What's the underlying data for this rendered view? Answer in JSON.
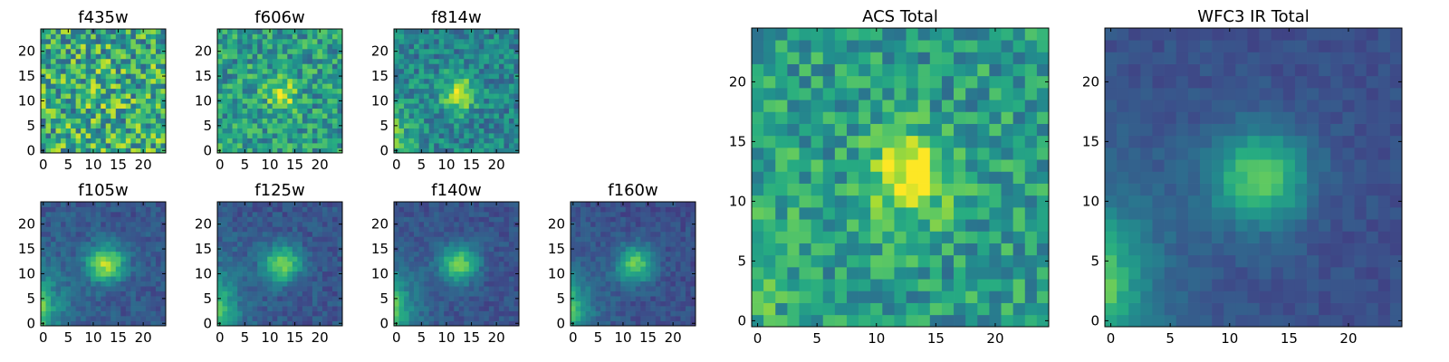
{
  "chart_data": [
    {
      "type": "heatmap",
      "title": "f435w",
      "x_ticks": [
        "0",
        "5",
        "10",
        "15",
        "20"
      ],
      "y_ticks": [
        "0",
        "5",
        "10",
        "15",
        "20"
      ],
      "xlim": [
        0,
        25
      ],
      "ylim": [
        0,
        25
      ],
      "grid_size": 25,
      "colormap": "viridis",
      "source_position": [
        12.5,
        11.5
      ],
      "peak_intensity": 0.05,
      "source_width": 3,
      "corner_glow": 0.0,
      "noise_level": 0.45,
      "background_level": 0.62
    },
    {
      "type": "heatmap",
      "title": "f606w",
      "x_ticks": [
        "0",
        "5",
        "10",
        "15",
        "20"
      ],
      "y_ticks": [
        "0",
        "5",
        "10",
        "15",
        "20"
      ],
      "xlim": [
        0,
        25
      ],
      "ylim": [
        0,
        25
      ],
      "grid_size": 25,
      "colormap": "viridis",
      "source_position": [
        12.5,
        11.5
      ],
      "peak_intensity": 0.35,
      "source_width": 2.2,
      "corner_glow": 0.05,
      "noise_level": 0.32,
      "background_level": 0.55
    },
    {
      "type": "heatmap",
      "title": "f814w",
      "x_ticks": [
        "0",
        "5",
        "10",
        "15",
        "20"
      ],
      "y_ticks": [
        "0",
        "5",
        "10",
        "15",
        "20"
      ],
      "xlim": [
        0,
        25
      ],
      "ylim": [
        0,
        25
      ],
      "grid_size": 25,
      "colormap": "viridis",
      "source_position": [
        12.5,
        11.5
      ],
      "peak_intensity": 0.45,
      "source_width": 2.5,
      "corner_glow": 0.55,
      "noise_level": 0.25,
      "background_level": 0.45
    },
    {
      "type": "heatmap",
      "title": "f105w",
      "x_ticks": [
        "0",
        "5",
        "10",
        "15",
        "20"
      ],
      "y_ticks": [
        "0",
        "5",
        "10",
        "15",
        "20"
      ],
      "xlim": [
        0,
        25
      ],
      "ylim": [
        0,
        25
      ],
      "grid_size": 25,
      "colormap": "viridis",
      "source_position": [
        12.5,
        12
      ],
      "peak_intensity": 0.6,
      "source_width": 2.6,
      "corner_glow": 0.9,
      "noise_level": 0.12,
      "background_level": 0.28
    },
    {
      "type": "heatmap",
      "title": "f125w",
      "x_ticks": [
        "0",
        "5",
        "10",
        "15",
        "20"
      ],
      "y_ticks": [
        "0",
        "5",
        "10",
        "15",
        "20"
      ],
      "xlim": [
        0,
        25
      ],
      "ylim": [
        0,
        25
      ],
      "grid_size": 25,
      "colormap": "viridis",
      "source_position": [
        12.5,
        12
      ],
      "peak_intensity": 0.55,
      "source_width": 2.6,
      "corner_glow": 0.95,
      "noise_level": 0.12,
      "background_level": 0.27
    },
    {
      "type": "heatmap",
      "title": "f140w",
      "x_ticks": [
        "0",
        "5",
        "10",
        "15",
        "20"
      ],
      "y_ticks": [
        "0",
        "5",
        "10",
        "15",
        "20"
      ],
      "xlim": [
        0,
        25
      ],
      "ylim": [
        0,
        25
      ],
      "grid_size": 25,
      "colormap": "viridis",
      "source_position": [
        12.5,
        12
      ],
      "peak_intensity": 0.52,
      "source_width": 2.6,
      "corner_glow": 0.95,
      "noise_level": 0.1,
      "background_level": 0.26
    },
    {
      "type": "heatmap",
      "title": "f160w",
      "x_ticks": [
        "0",
        "5",
        "10",
        "15",
        "20"
      ],
      "y_ticks": [
        "0",
        "5",
        "10",
        "15",
        "20"
      ],
      "xlim": [
        0,
        25
      ],
      "ylim": [
        0,
        25
      ],
      "grid_size": 25,
      "colormap": "viridis",
      "source_position": [
        12.5,
        12
      ],
      "peak_intensity": 0.5,
      "source_width": 2.6,
      "corner_glow": 0.95,
      "noise_level": 0.1,
      "background_level": 0.25
    },
    {
      "type": "heatmap",
      "title": "ACS Total",
      "x_ticks": [
        "0",
        "5",
        "10",
        "15",
        "20"
      ],
      "y_ticks": [
        "0",
        "5",
        "10",
        "15",
        "20"
      ],
      "xlim": [
        0,
        25
      ],
      "ylim": [
        0,
        25
      ],
      "grid_size": 25,
      "colormap": "viridis",
      "source_position": [
        12.5,
        12
      ],
      "peak_intensity": 0.45,
      "source_width": 2.4,
      "corner_glow": 0.3,
      "noise_level": 0.28,
      "background_level": 0.55
    },
    {
      "type": "heatmap",
      "title": "WFC3 IR Total",
      "x_ticks": [
        "0",
        "5",
        "10",
        "15",
        "20"
      ],
      "y_ticks": [
        "0",
        "5",
        "10",
        "15",
        "20"
      ],
      "xlim": [
        0,
        25
      ],
      "ylim": [
        0,
        25
      ],
      "grid_size": 25,
      "colormap": "viridis",
      "source_position": [
        12.5,
        12
      ],
      "peak_intensity": 0.5,
      "source_width": 2.8,
      "corner_glow": 0.95,
      "noise_level": 0.07,
      "background_level": 0.25
    }
  ]
}
